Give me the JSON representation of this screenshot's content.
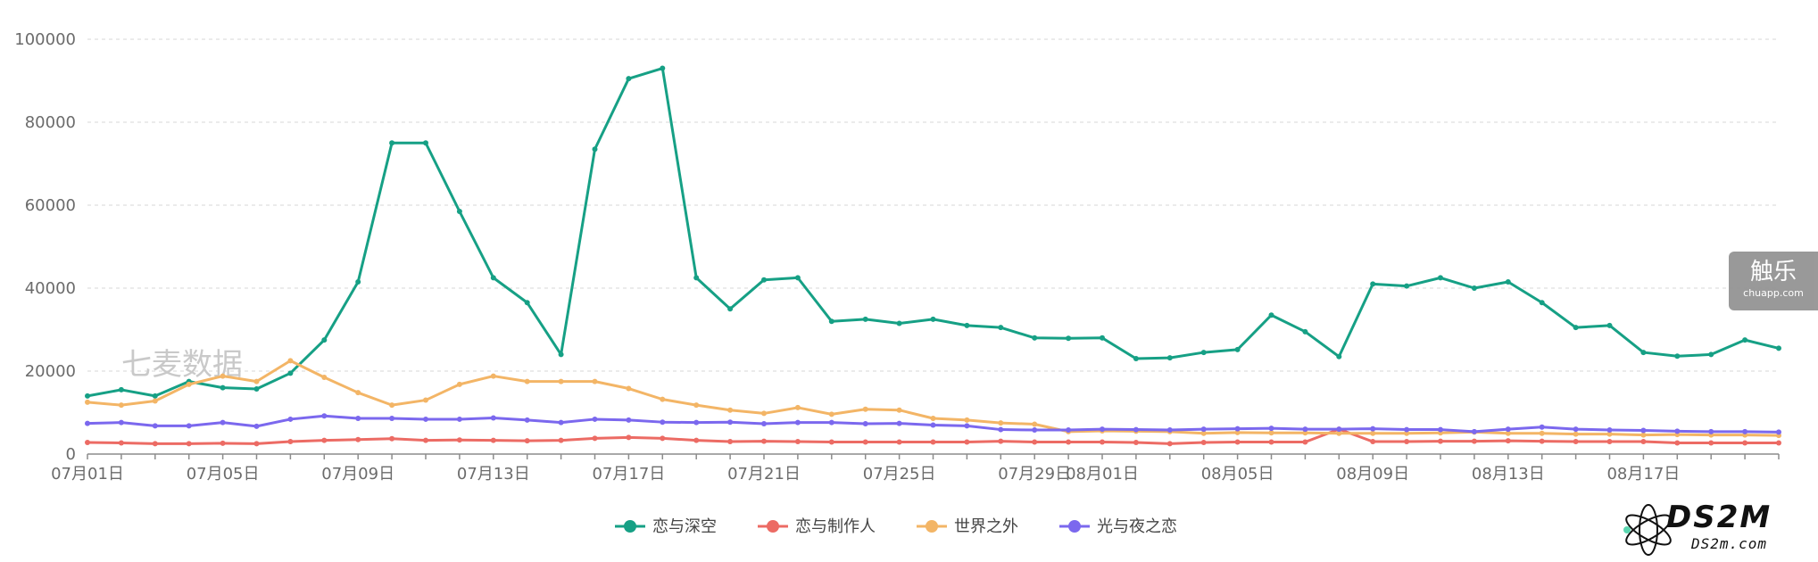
{
  "watermarks": {
    "qimai": "七麦数据",
    "chuapp_title": "触乐",
    "chuapp_url": "chuapp.com",
    "ds2m_logo": "DS2M",
    "ds2m_url": "DS2m.com"
  },
  "chart_data": {
    "type": "line",
    "title": "",
    "xlabel": "",
    "ylabel": "",
    "ylim": [
      0,
      100000
    ],
    "y_ticks": [
      0,
      20000,
      40000,
      60000,
      80000,
      100000
    ],
    "grid": true,
    "legend_position": "bottom-center",
    "x": [
      "07月01日",
      "07月02日",
      "07月03日",
      "07月04日",
      "07月05日",
      "07月06日",
      "07月07日",
      "07月08日",
      "07月09日",
      "07月10日",
      "07月11日",
      "07月12日",
      "07月13日",
      "07月14日",
      "07月15日",
      "07月16日",
      "07月17日",
      "07月18日",
      "07月19日",
      "07月20日",
      "07月21日",
      "07月22日",
      "07月23日",
      "07月24日",
      "07月25日",
      "07月26日",
      "07月27日",
      "07月28日",
      "07月29日",
      "07月30日",
      "08月01日",
      "08月02日",
      "08月03日",
      "08月04日",
      "08月05日",
      "08月06日",
      "08月07日",
      "08月08日",
      "08月09日",
      "08月10日",
      "08月11日",
      "08月12日",
      "08月13日",
      "08月14日",
      "08月15日",
      "08月16日",
      "08月17日",
      "08月18日",
      "08月19日",
      "08月20日",
      "08月21日"
    ],
    "x_tick_labels": [
      "07月01日",
      "07月05日",
      "07月09日",
      "07月13日",
      "07月17日",
      "07月21日",
      "07月25日",
      "07月29日",
      "08月01日",
      "08月05日",
      "08月09日",
      "08月13日",
      "08月17日"
    ],
    "series": [
      {
        "name": "恋与深空",
        "color": "#16a085",
        "values": [
          14000,
          15500,
          14000,
          17500,
          16000,
          15700,
          19500,
          27500,
          41500,
          75000,
          75000,
          58500,
          42500,
          36500,
          24000,
          73500,
          90500,
          93000,
          42500,
          35000,
          42000,
          42500,
          32000,
          32500,
          31500,
          32500,
          31000,
          30500,
          28000,
          27900,
          28000,
          23000,
          23200,
          24500,
          25200,
          33500,
          29500,
          23500,
          41000,
          40500,
          42500,
          40000,
          41500,
          36500,
          30500,
          31000,
          24500,
          23600,
          24000,
          27500,
          25500
        ]
      },
      {
        "name": "恋与制作人",
        "color": "#ec6b64",
        "values": [
          2800,
          2700,
          2500,
          2500,
          2600,
          2500,
          3000,
          3300,
          3500,
          3700,
          3300,
          3400,
          3300,
          3200,
          3300,
          3800,
          4000,
          3800,
          3300,
          3000,
          3100,
          3000,
          2900,
          2900,
          2900,
          2900,
          2900,
          3100,
          2900,
          2900,
          2900,
          2800,
          2500,
          2800,
          2900,
          2900,
          2900,
          6000,
          3000,
          3000,
          3100,
          3100,
          3200,
          3100,
          3000,
          3000,
          3000,
          2700,
          2700,
          2700,
          2700
        ]
      },
      {
        "name": "世界之外",
        "color": "#f3b566",
        "values": [
          12500,
          11800,
          12800,
          16800,
          18800,
          17500,
          22500,
          18500,
          14800,
          11800,
          13000,
          16800,
          18800,
          17500,
          17500,
          17500,
          15800,
          13200,
          11800,
          10600,
          9800,
          11200,
          9600,
          10800,
          10600,
          8600,
          8200,
          7500,
          7200,
          5400,
          5600,
          5500,
          5400,
          5000,
          5200,
          5100,
          5100,
          5000,
          5000,
          5000,
          5100,
          5300,
          5000,
          5000,
          4800,
          4800,
          4600,
          4700,
          4600,
          4600,
          4500
        ]
      },
      {
        "name": "光与夜之恋",
        "color": "#7b68ee",
        "values": [
          7400,
          7600,
          6800,
          6800,
          7600,
          6700,
          8400,
          9200,
          8600,
          8600,
          8400,
          8400,
          8700,
          8200,
          7600,
          8400,
          8200,
          7700,
          7600,
          7700,
          7300,
          7600,
          7600,
          7300,
          7400,
          7000,
          6800,
          5900,
          5800,
          5800,
          6000,
          5900,
          5800,
          6000,
          6100,
          6200,
          6000,
          6000,
          6100,
          5900,
          5900,
          5400,
          6000,
          6500,
          6000,
          5800,
          5700,
          5500,
          5400,
          5400,
          5300
        ]
      }
    ]
  }
}
